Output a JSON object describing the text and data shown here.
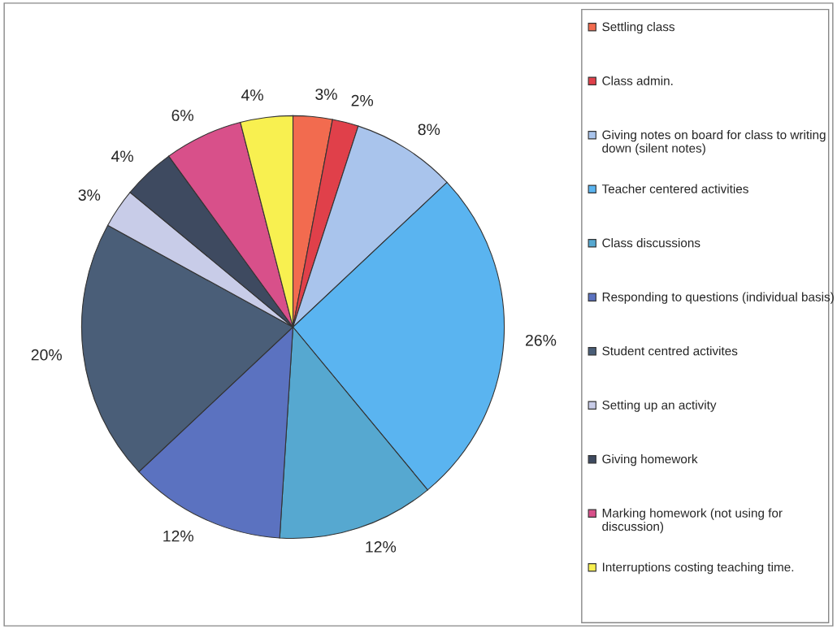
{
  "chart_data": {
    "type": "pie",
    "categories": [
      "Settling class",
      "Class admin.",
      "Giving notes on board for class to writing down (silent notes)",
      "Teacher centered activities",
      "Class discussions",
      "Responding to questions (individual basis)",
      "Student centred activites",
      "Setting up an activity",
      "Giving homework",
      "Marking homework (not using for discussion)",
      "Interruptions costing teaching time."
    ],
    "values": [
      3,
      2,
      8,
      26,
      12,
      12,
      20,
      3,
      4,
      6,
      4
    ],
    "value_labels": [
      "3%",
      "2%",
      "8%",
      "26%",
      "12%",
      "12%",
      "20%",
      "3%",
      "4%",
      "6%",
      "4%"
    ],
    "colors": [
      "#f26b4f",
      "#e0404a",
      "#a9c4ec",
      "#5ab4f0",
      "#56a8d0",
      "#5b72c0",
      "#4a5e78",
      "#c8cce8",
      "#3e4a60",
      "#d8508a",
      "#f8f050"
    ],
    "legend": "right"
  }
}
